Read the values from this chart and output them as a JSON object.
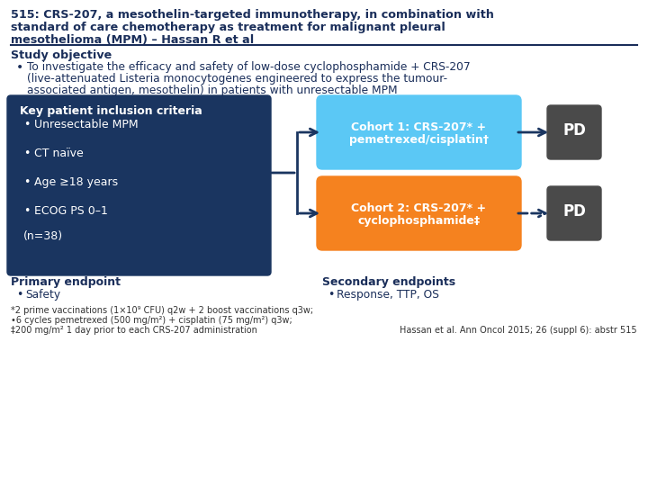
{
  "title_line1": "515: CRS-207, a mesothelin-targeted immunotherapy, in combination with",
  "title_line2": "standard of care chemotherapy as treatment for malignant pleural",
  "title_line3": "mesothelioma (MPM) – Hassan R et al",
  "title_color": "#1a2e5a",
  "bg_color": "#ffffff",
  "section_objective": "Study objective",
  "bullet_objective_lines": [
    "To investigate the efficacy and safety of low-dose cyclophosphamide + CRS-207",
    "(live-attenuated Listeria monocytogenes engineered to express the tumour-",
    "associated antigen, mesothelin) in patients with unresectable MPM"
  ],
  "left_box_color": "#1a3560",
  "left_box_title": "Key patient inclusion criteria",
  "left_box_bullets": [
    "Unresectable MPM",
    "CT naïve",
    "Age ≥18 years",
    "ECOG PS 0–1"
  ],
  "left_box_last": "(n=38)",
  "left_box_text_color": "#ffffff",
  "cohort1_color": "#5bc8f5",
  "cohort1_line1": "Cohort 1: CRS-207* +",
  "cohort1_line2": "pemetrexed/cisplatin†",
  "cohort2_color": "#f5821f",
  "cohort2_line1": "Cohort 2: CRS-207* +",
  "cohort2_line2": "cyclophosphamide‡",
  "pd_color": "#4a4a4a",
  "pd_text": "PD",
  "arrow_color": "#1a3560",
  "primary_endpoint_title": "Primary endpoint",
  "primary_endpoint_bullet": "Safety",
  "secondary_endpoint_title": "Secondary endpoints",
  "secondary_endpoint_bullet": "Response, TTP, OS",
  "footnote1": "*2 prime vaccinations (1×10⁹ CFU) q2w + 2 boost vaccinations q3w;",
  "footnote2": "•6 cycles pemetrexed (500 mg/m²) + cisplatin (75 mg/m²) q3w;",
  "footnote3": "‡200 mg/m² 1 day prior to each CRS-207 administration",
  "citation": "Hassan et al. Ann Oncol 2015; 26 (suppl 6): abstr 515"
}
